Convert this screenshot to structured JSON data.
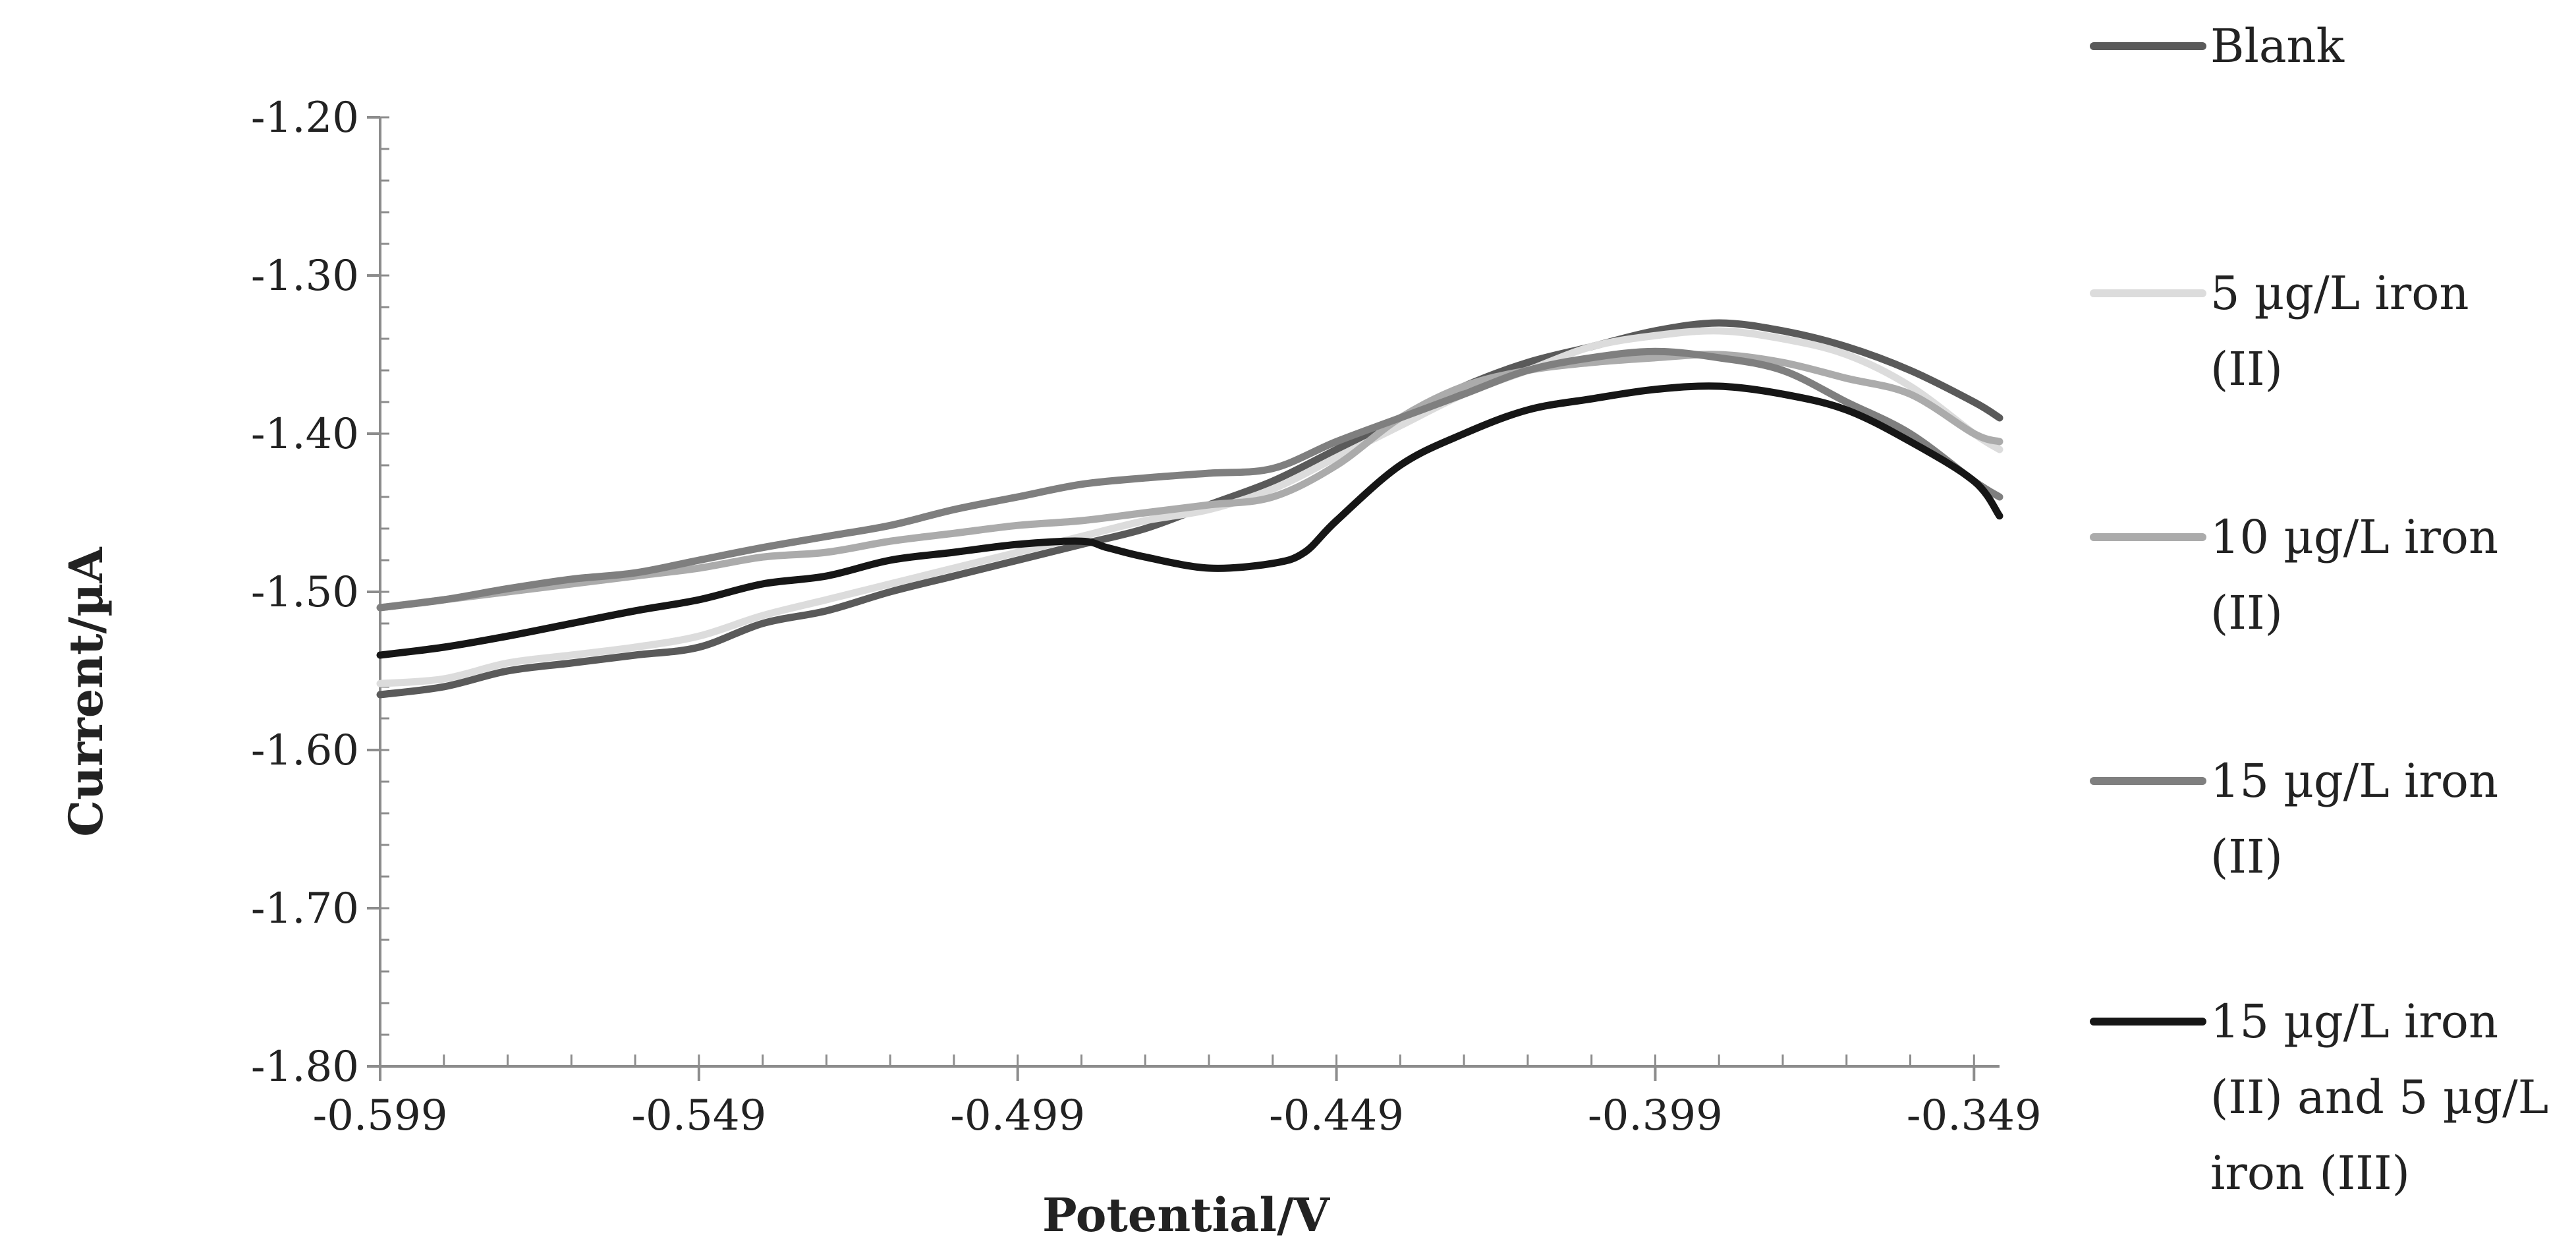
{
  "chart_data": {
    "type": "line",
    "xlabel": "Potential/V",
    "ylabel": "Current/µA",
    "xlim": [
      -0.599,
      -0.345
    ],
    "ylim": [
      -1.8,
      -1.2
    ],
    "x_ticks": [
      -0.599,
      -0.549,
      -0.499,
      -0.449,
      -0.399,
      -0.349
    ],
    "x_tick_labels": [
      "-0.599",
      "-0.549",
      "-0.499",
      "-0.449",
      "-0.399",
      "-0.349"
    ],
    "y_ticks": [
      -1.2,
      -1.3,
      -1.4,
      -1.5,
      -1.6,
      -1.7,
      -1.8
    ],
    "y_tick_labels": [
      "-1.20",
      "-1.30",
      "-1.40",
      "-1.50",
      "-1.60",
      "-1.70",
      "-1.80"
    ],
    "grid": false,
    "legend_position": "right",
    "series": [
      {
        "name": "Blank",
        "legend_lines": [
          "Blank"
        ],
        "color": "#5a5a5a",
        "x": [
          -0.599,
          -0.589,
          -0.579,
          -0.569,
          -0.559,
          -0.549,
          -0.539,
          -0.529,
          -0.519,
          -0.509,
          -0.499,
          -0.489,
          -0.479,
          -0.469,
          -0.459,
          -0.449,
          -0.439,
          -0.429,
          -0.419,
          -0.409,
          -0.399,
          -0.389,
          -0.379,
          -0.369,
          -0.359,
          -0.349,
          -0.345
        ],
        "y": [
          -1.565,
          -1.56,
          -1.55,
          -1.545,
          -1.54,
          -1.535,
          -1.52,
          -1.512,
          -1.5,
          -1.49,
          -1.48,
          -1.47,
          -1.46,
          -1.445,
          -1.43,
          -1.41,
          -1.39,
          -1.37,
          -1.355,
          -1.345,
          -1.335,
          -1.33,
          -1.335,
          -1.345,
          -1.36,
          -1.38,
          -1.39
        ]
      },
      {
        "name": "5 µg/L iron (II)",
        "legend_lines": [
          "5 µg/L iron",
          "(II)"
        ],
        "color": "#dcdcdc",
        "x": [
          -0.599,
          -0.589,
          -0.579,
          -0.569,
          -0.559,
          -0.549,
          -0.539,
          -0.529,
          -0.519,
          -0.509,
          -0.499,
          -0.489,
          -0.479,
          -0.469,
          -0.459,
          -0.449,
          -0.439,
          -0.429,
          -0.419,
          -0.409,
          -0.399,
          -0.389,
          -0.379,
          -0.369,
          -0.359,
          -0.349,
          -0.345
        ],
        "y": [
          -1.558,
          -1.555,
          -1.545,
          -1.54,
          -1.535,
          -1.528,
          -1.515,
          -1.505,
          -1.495,
          -1.485,
          -1.475,
          -1.465,
          -1.455,
          -1.448,
          -1.435,
          -1.415,
          -1.395,
          -1.375,
          -1.36,
          -1.345,
          -1.338,
          -1.335,
          -1.34,
          -1.35,
          -1.37,
          -1.4,
          -1.41
        ]
      },
      {
        "name": "10 µg/L iron (II)",
        "legend_lines": [
          "10 µg/L iron",
          "(II)"
        ],
        "color": "#ababab",
        "x": [
          -0.599,
          -0.589,
          -0.579,
          -0.569,
          -0.559,
          -0.549,
          -0.539,
          -0.529,
          -0.519,
          -0.509,
          -0.499,
          -0.489,
          -0.479,
          -0.469,
          -0.459,
          -0.449,
          -0.439,
          -0.429,
          -0.419,
          -0.409,
          -0.399,
          -0.389,
          -0.379,
          -0.369,
          -0.359,
          -0.349,
          -0.345
        ],
        "y": [
          -1.51,
          -1.505,
          -1.5,
          -1.495,
          -1.49,
          -1.485,
          -1.478,
          -1.475,
          -1.468,
          -1.463,
          -1.458,
          -1.455,
          -1.45,
          -1.445,
          -1.44,
          -1.42,
          -1.39,
          -1.37,
          -1.36,
          -1.355,
          -1.352,
          -1.35,
          -1.355,
          -1.365,
          -1.375,
          -1.4,
          -1.405
        ]
      },
      {
        "name": "15 µg/L iron (II)",
        "legend_lines": [
          "15 µg/L iron",
          "(II)"
        ],
        "color": "#7f7f7f",
        "x": [
          -0.599,
          -0.589,
          -0.579,
          -0.569,
          -0.559,
          -0.549,
          -0.539,
          -0.529,
          -0.519,
          -0.509,
          -0.499,
          -0.489,
          -0.479,
          -0.469,
          -0.459,
          -0.449,
          -0.439,
          -0.429,
          -0.419,
          -0.409,
          -0.399,
          -0.389,
          -0.379,
          -0.369,
          -0.359,
          -0.349,
          -0.345
        ],
        "y": [
          -1.51,
          -1.505,
          -1.498,
          -1.492,
          -1.488,
          -1.48,
          -1.472,
          -1.465,
          -1.458,
          -1.448,
          -1.44,
          -1.432,
          -1.428,
          -1.425,
          -1.422,
          -1.405,
          -1.39,
          -1.375,
          -1.36,
          -1.352,
          -1.348,
          -1.352,
          -1.36,
          -1.38,
          -1.4,
          -1.43,
          -1.44
        ]
      },
      {
        "name": "15 µg/L iron (II) and 5 µg/L iron (III)",
        "legend_lines": [
          "15 µg/L iron",
          "(II) and 5 µg/L",
          "iron (III)"
        ],
        "color": "#161616",
        "x": [
          -0.599,
          -0.589,
          -0.579,
          -0.569,
          -0.559,
          -0.549,
          -0.539,
          -0.529,
          -0.519,
          -0.509,
          -0.499,
          -0.489,
          -0.485,
          -0.479,
          -0.469,
          -0.459,
          -0.454,
          -0.449,
          -0.439,
          -0.429,
          -0.419,
          -0.409,
          -0.399,
          -0.389,
          -0.379,
          -0.369,
          -0.359,
          -0.349,
          -0.345
        ],
        "y": [
          -1.54,
          -1.535,
          -1.528,
          -1.52,
          -1.512,
          -1.505,
          -1.495,
          -1.49,
          -1.48,
          -1.475,
          -1.47,
          -1.468,
          -1.472,
          -1.478,
          -1.485,
          -1.482,
          -1.475,
          -1.455,
          -1.42,
          -1.4,
          -1.385,
          -1.378,
          -1.372,
          -1.37,
          -1.375,
          -1.385,
          -1.405,
          -1.43,
          -1.452
        ]
      }
    ]
  }
}
